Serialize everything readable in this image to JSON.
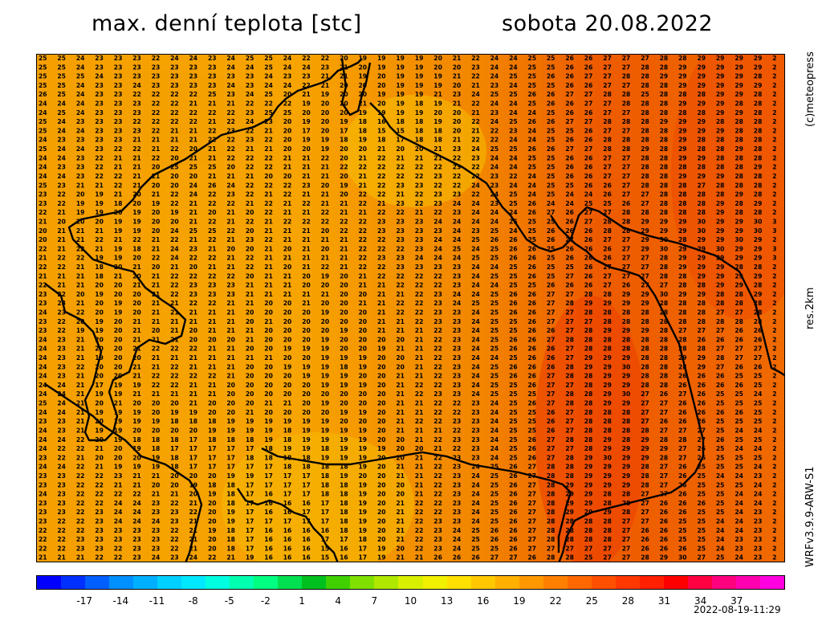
{
  "header": {
    "title": "max. denní teplota [stc]",
    "date": "sobota 20.08.2022"
  },
  "side_labels": {
    "copyright": "(c)meteopress",
    "resolution": "res.2km",
    "model": "WRFv3.9.9-ARW-S1"
  },
  "colorbar": {
    "tick_labels": [
      "-17",
      "-14",
      "-11",
      "-8",
      "-5",
      "-2",
      "1",
      "4",
      "7",
      "10",
      "13",
      "16",
      "19",
      "22",
      "25",
      "28",
      "31",
      "34",
      "37"
    ],
    "colors": [
      "#0000ff",
      "#0030ff",
      "#0060ff",
      "#0090ff",
      "#00b0ff",
      "#00d0ff",
      "#00e8ff",
      "#00ffe0",
      "#00ffb0",
      "#00ff80",
      "#00e050",
      "#00c020",
      "#40d000",
      "#80e000",
      "#b0e800",
      "#d8f000",
      "#f0f000",
      "#ffe000",
      "#ffc800",
      "#ffb000",
      "#ff9800",
      "#ff8000",
      "#ff6800",
      "#ff5000",
      "#ff3800",
      "#ff2000",
      "#ff0000",
      "#ff0040",
      "#ff0080",
      "#ff00b0",
      "#ff00e0"
    ]
  },
  "timestamp": "2022-08-19-11:29",
  "map": {
    "grid_values": [
      "25 25 24 23 23 23 22 24 24 23 24 25 25 24 22 22 20 19 19 19 19 20 21 22 24 24 25 25 26 26 27 27 27 28 28 29 29 29 29 2",
      "25 25 24 23 23 23 23 23 23 23 24 24 25 24 24 23 21 20 19 19 19 20 20 23 24 24 25 25 26 26 27 27 28 28 29 29 29 29 29 2",
      "25 25 25 24 23 23 23 23 23 23 23 23 24 23 23 21 21 19 20 19 19 19 21 22 24 25 25 26 26 27 27 28 28 29 29 29 29 29 28 2",
      "25 25 24 23 23 24 23 23 23 23 24 23 24 24 22 21 20 20 20 19 19 19 20 21 23 24 25 25 26 26 27 27 28 28 29 29 29 29 29 2",
      "26 25 24 23 23 22 22 22 22 25 23 24 25 20 21 19 20 20 19 19 19 21 23 24 25 25 26 26 27 27 28 28 25 28 28 28 29 29 28 2",
      "24 24 24 23 23 23 22 22 21 21 21 22 22 22 19 20 20 21 20 19 18 19 21 22 24 24 25 26 26 27 27 28 28 28 29 29 29 28 28 2",
      "24 25 24 23 23 23 22 22 22 22 22 23 25 25 20 20 20 19 19 19 19 20 20 21 23 24 24 25 26 26 27 27 28 28 28 28 29 29 28 2",
      "25 24 23 23 23 22 22 22 22 21 22 24 23 20 19 20 19 18 16 18 18 19 20 22 24 25 26 26 27 27 28 28 28 29 29 29 28 28 28 2",
      "25 24 24 23 23 23 22 21 21 22 23 22 21 20 17 20 17 18 15 15 18 18 20 21 22 23 24 25 25 26 27 27 28 28 29 29 29 28 28 2",
      "24 23 23 23 23 21 21 21 21 22 22 23 22 20 19 19 18 19 18 17 18 18 21 22 22 24 24 25 26 26 28 28 28 28 29 28 28 28 28 2",
      "25 24 24 23 22 22 21 22 20 21 22 21 21 20 20 19 20 20 21 20 20 21 23 24 25 25 26 26 27 27 28 28 29 28 29 28 28 29 28 2",
      "24 24 23 22 21 21 22 20 21 21 22 22 22 21 21 22 20 21 22 21 21 21 22 23 24 24 25 25 26 26 27 27 28 28 29 29 28 28 28 2",
      "24 23 23 22 21 21 20 25 25 25 20 22 22 21 21 21 22 22 22 22 22 22 23 22 24 24 25 25 26 26 27 27 28 28 28 28 28 28 29 2",
      "24 24 23 22 22 21 21 20 20 21 21 21 20 20 21 21 20 21 22 22 22 23 22 22 23 22 24 25 26 26 27 27 28 28 29 29 29 28 28 2",
      "25 23 21 21 22 21 20 20 24 26 24 22 22 22 23 20 19 21 22 23 23 22 22 24 23 24 24 25 25 26 26 27 28 28 28 27 28 28 28 2",
      "23 22 20 19 21 20 21 22 24 22 23 22 21 22 21 21 20 22 22 21 22 23 23 22 24 25 24 25 24 24 26 27 27 28 28 28 28 29 28 2",
      "23 22 19 19 18 20 19 22 21 22 22 21 22 21 22 21 21 22 21 23 22 23 24 24 23 25 26 24 24 25 25 26 27 28 28 28 29 28 29 2",
      "22 21 19 19 20 19 20 19 21 20 21 20 22 21 21 22 21 21 22 22 21 22 23 24 24 24 26 27 26 27 27 28 28 28 28 28 29 28 28 2",
      "21 20 20 20 19 19 20 20 21 22 21 22 21 22 22 22 22 22 23 23 23 24 24 24 24 25 25 25 26 27 28 28 29 29 29 30 29 29 30 3",
      "20 21 21 21 19 19 20 24 25 25 22 20 21 21 21 20 22 22 23 23 23 23 24 23 25 24 25 26 26 26 28 28 29 29 29 30 29 29 30 3",
      "20 21 21 22 21 22 21 22 21 22 21 23 22 21 21 21 21 22 22 23 23 24 24 25 26 26 25 26 27 26 27 27 29 30 28 29 29 30 29 2",
      "22 21 22 21 19 18 21 24 23 21 20 20 21 20 21 20 21 22 22 22 23 24 25 24 25 26 26 25 26 26 26 27 29 30 29 29 30 29 29 3",
      "21 22 22 19 19 20 22 24 22 22 21 22 21 21 21 21 21 22 23 23 24 24 24 25 25 26 26 25 26 26 26 27 27 28 29 29 29 29 29 3",
      "22 22 21 18 20 21 20 21 20 21 21 22 21 20 21 22 21 22 22 23 23 23 23 24 24 25 26 25 25 26 27 27 27 28 29 29 29 28 28 2",
      "21 21 21 18 21 20 21 22 22 22 22 20 21 21 20 19 20 21 22 22 22 22 23 24 25 25 26 25 27 26 27 27 27 28 28 29 29 29 29 2",
      "22 21 21 20 20 21 21 22 23 23 23 21 21 21 20 20 20 21 21 22 22 22 23 24 24 25 25 26 26 26 27 26 27 27 28 28 29 29 28 2",
      "23 22 20 19 20 20 21 22 23 23 23 21 21 21 21 21 20 20 21 21 22 23 24 24 25 26 26 27 27 28 28 29 29 30 29 29 28 28 29 2",
      "23 23 21 20 19 20 21 21 22 22 21 21 20 20 21 20 20 21 21 22 22 23 24 25 25 26 26 27 28 29 29 29 29 28 28 28 28 28 28 2",
      "24 23 22 20 19 20 21 21 21 21 21 20 20 20 20 19 20 20 21 22 22 23 23 24 25 26 26 27 27 28 28 28 28 28 28 28 27 27 28 2",
      "23 22 20 19 20 21 21 21 21 21 21 20 21 20 20 20 20 20 21 21 22 23 23 24 25 25 26 27 27 27 28 28 28 28 28 28 28 28 28 2",
      "23 22 19 19 20 21 20 21 20 21 21 21 20 20 20 20 19 20 21 21 21 22 23 24 25 25 26 26 27 28 29 29 29 28 27 27 27 26 26 2",
      "24 23 21 20 20 21 21 21 20 20 20 21 20 20 20 19 20 20 20 20 21 22 23 24 25 26 26 27 28 28 28 28 28 28 28 26 26 26 26 2",
      "24 23 21 20 20 21 22 22 22 21 21 20 20 19 19 19 20 20 19 21 21 22 23 24 25 26 26 26 27 28 28 28 28 28 28 28 27 27 27 2",
      "24 23 21 19 20 20 21 21 21 21 21 21 21 20 20 19 19 19 20 20 21 22 23 24 24 25 26 26 27 29 29 29 28 28 29 29 28 27 27 2",
      "24 23 22 20 20 21 21 22 21 21 21 20 20 19 19 19 18 19 20 20 21 22 23 24 25 26 26 26 28 29 29 30 28 28 28 29 27 26 26 2",
      "24 23 21 20 20 21 22 22 22 22 21 20 20 20 19 19 19 20 20 21 21 22 23 24 25 26 26 27 28 28 29 29 28 28 26 26 26 25 25 2",
      "24 24 21 17 19 19 22 22 21 21 20 20 20 20 20 19 19 19 20 21 22 22 23 24 25 25 26 27 27 28 29 29 28 28 26 26 26 26 25 2",
      "24 24 21 19 19 21 21 21 21 21 20 20 20 20 20 20 20 20 20 21 22 23 23 24 25 25 25 27 28 28 29 30 27 26 27 26 25 25 24 2",
      "25 24 21 20 21 20 20 20 21 20 20 20 21 21 20 19 20 20 20 21 21 22 22 23 24 25 26 27 28 28 29 29 27 27 26 26 25 25 25 2",
      "24 24 21 19 19 19 20 19 19 20 20 21 20 20 20 20 19 19 20 21 21 22 22 23 24 25 25 26 27 28 28 28 27 27 26 26 26 26 25 2",
      "23 23 21 20 19 19 19 18 18 18 19 19 19 19 19 19 20 20 20 21 22 22 23 23 24 25 25 26 27 28 28 28 27 26 26 26 25 25 25 2",
      "24 23 21 19 19 20 20 20 20 19 19 19 19 18 19 19 19 19 20 21 21 21 22 23 24 25 25 26 27 28 28 28 28 27 27 27 25 24 24 2",
      "24 24 22 20 19 18 18 18 17 18 18 18 19 18 19 19 19 19 20 20 21 22 23 23 24 25 26 27 28 28 29 28 29 28 28 27 26 25 25 2",
      "24 22 22 21 20 19 18 17 17 17 17 17 18 19 19 18 19 19 19 20 20 21 22 23 24 25 26 27 27 28 29 29 29 29 27 26 25 24 24 2",
      "23 22 21 20 20 20 19 18 17 17 17 18 18 18 18 19 19 19 20 20 21 22 23 23 24 25 26 27 28 29 30 29 29 28 27 26 25 25 25 2",
      "24 24 22 21 19 19 19 18 17 17 17 17 17 18 18 18 18 19 20 21 21 22 23 24 25 26 27 28 28 29 29 29 28 27 26 25 25 25 24 2",
      "23 23 22 22 23 21 21 20 20 20 19 19 17 17 17 18 19 20 20 21 21 22 23 24 25 26 27 28 28 29 29 29 28 27 26 25 24 24 23 2",
      "23 23 22 22 21 21 20 20 19 18 18 17 17 17 17 18 18 19 20 20 21 22 23 24 25 26 27 28 29 29 29 29 28 27 26 25 25 25 24 2",
      "24 23 22 22 22 22 21 21 20 19 18 17 16 17 17 18 18 19 20 20 21 22 23 24 25 26 27 28 29 29 28 28 27 27 26 25 25 24 24 2",
      "23 23 22 22 24 24 23 22 21 20 18 17 16 16 16 17 18 19 20 21 22 22 23 24 25 26 27 28 29 29 28 28 27 26 26 26 25 24 24 2",
      "23 23 22 23 24 24 23 23 22 20 19 17 16 16 17 17 18 19 20 21 22 22 23 24 25 26 27 28 29 29 29 28 27 26 26 25 25 24 23 2",
      "23 22 22 23 24 24 24 23 21 20 19 17 17 17 17 17 18 19 20 21 22 23 23 24 25 26 27 28 28 28 28 27 27 26 25 25 24 24 23 2",
      "22 22 22 23 23 23 23 22 21 19 18 17 16 16 16 16 18 19 20 21 22 23 24 25 26 26 27 28 28 28 28 27 26 26 25 25 24 24 23 2",
      "22 22 23 23 23 23 23 22 21 20 18 17 16 16 16 17 17 18 20 21 22 23 24 25 26 26 27 28 28 28 28 27 26 26 25 25 24 23 23 2",
      "22 22 23 23 22 23 23 22 21 20 18 17 16 16 16 15 16 17 19 20 22 23 24 25 25 26 27 27 27 27 27 27 26 26 26 25 24 23 23 2",
      "21 21 21 22 22 23 24 23 24 22 21 19 16 16 16 15 16 17 19 21 21 26 26 26 27 27 26 28 28 25 27 27 28 29 30 27 25 24 23 2"
    ]
  }
}
